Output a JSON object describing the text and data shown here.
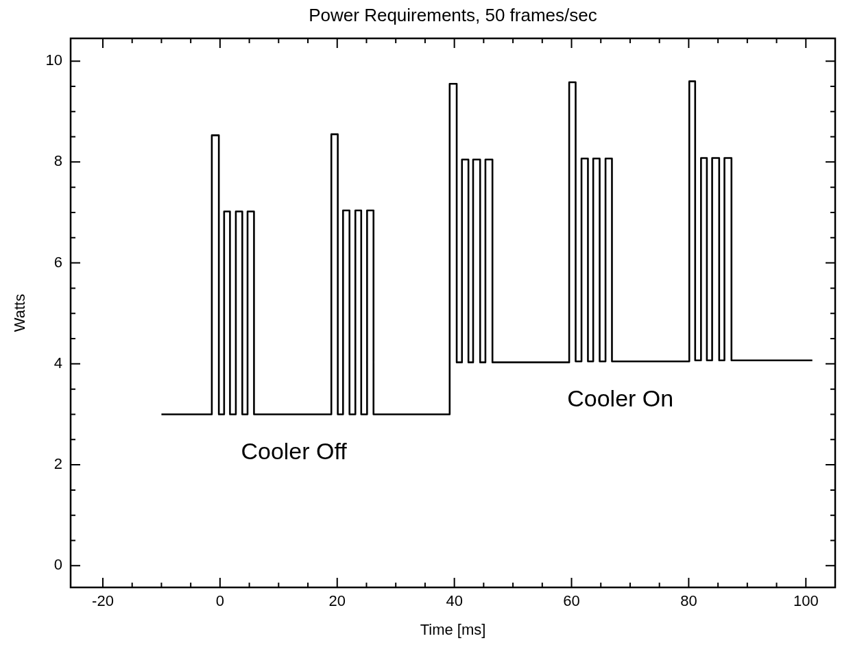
{
  "chart_data": {
    "type": "line",
    "title": "Power Requirements, 50 frames/sec",
    "xlabel": "Time [ms]",
    "ylabel": "Watts",
    "xlim": [
      -25.5,
      105
    ],
    "ylim": [
      -0.43,
      10.45
    ],
    "xticks": [
      -20,
      {
        "value": -15,
        "label": null
      },
      {
        "value": -10,
        "label": null
      },
      {
        "value": -5,
        "label": null
      },
      0,
      {
        "value": 5,
        "label": null
      },
      {
        "value": 10,
        "label": null
      },
      {
        "value": 15,
        "label": null
      },
      20,
      {
        "value": 25,
        "label": null
      },
      {
        "value": 30,
        "label": null
      },
      {
        "value": 35,
        "label": null
      },
      40,
      {
        "value": 45,
        "label": null
      },
      {
        "value": 50,
        "label": null
      },
      {
        "value": 55,
        "label": null
      },
      60,
      {
        "value": 65,
        "label": null
      },
      {
        "value": 70,
        "label": null
      },
      {
        "value": 75,
        "label": null
      },
      80,
      {
        "value": 85,
        "label": null
      },
      {
        "value": 90,
        "label": null
      },
      {
        "value": 95,
        "label": null
      },
      100
    ],
    "yticks": [
      0,
      {
        "value": 0.5,
        "label": null
      },
      {
        "value": 1,
        "label": null
      },
      {
        "value": 1.5,
        "label": null
      },
      2,
      {
        "value": 2.5,
        "label": null
      },
      {
        "value": 3,
        "label": null
      },
      {
        "value": 3.5,
        "label": null
      },
      4,
      {
        "value": 4.5,
        "label": null
      },
      {
        "value": 5,
        "label": null
      },
      {
        "value": 5.5,
        "label": null
      },
      6,
      {
        "value": 6.5,
        "label": null
      },
      {
        "value": 7,
        "label": null
      },
      {
        "value": 7.5,
        "label": null
      },
      8,
      {
        "value": 8.5,
        "label": null
      },
      {
        "value": 9,
        "label": null
      },
      {
        "value": 9.5,
        "label": null
      },
      10
    ],
    "grid": false,
    "legend": false,
    "marker": "none",
    "line_style": "solid",
    "series": [
      {
        "color": "#000000",
        "x": [
          -10,
          -1.4,
          -1.4,
          -0.2,
          -0.2,
          0.7,
          0.7,
          1.7,
          1.7,
          2.7,
          2.7,
          3.8,
          3.8,
          4.7,
          4.7,
          5.8,
          5.8,
          19.0,
          19.0,
          20.1,
          20.1,
          21.0,
          21.0,
          22.1,
          22.1,
          23.1,
          23.1,
          24.1,
          24.1,
          25.1,
          25.1,
          26.2,
          26.2,
          39.2,
          39.2,
          40.4,
          40.4,
          41.3,
          41.3,
          42.4,
          42.4,
          43.2,
          43.2,
          44.4,
          44.4,
          45.3,
          45.3,
          46.5,
          46.5,
          59.6,
          59.6,
          60.7,
          60.7,
          61.7,
          61.7,
          62.8,
          62.8,
          63.7,
          63.7,
          64.8,
          64.8,
          65.8,
          65.8,
          66.9,
          66.9,
          80.1,
          80.1,
          81.1,
          81.1,
          82.1,
          82.1,
          83.1,
          83.1,
          84.0,
          84.0,
          85.2,
          85.2,
          86.1,
          86.1,
          87.3,
          87.3,
          101.1
        ],
        "values": [
          3,
          3,
          8.53,
          8.53,
          3,
          3,
          7.02,
          7.02,
          3,
          3,
          7.02,
          7.02,
          3,
          3,
          7.02,
          7.02,
          3,
          3,
          8.55,
          8.55,
          3,
          3,
          7.04,
          7.04,
          3,
          3,
          7.04,
          7.04,
          3,
          3,
          7.04,
          7.04,
          3,
          3,
          9.55,
          9.55,
          4.03,
          4.03,
          8.05,
          8.05,
          4.03,
          4.03,
          8.05,
          8.05,
          4.03,
          4.03,
          8.05,
          8.05,
          4.03,
          4.03,
          9.58,
          9.58,
          4.05,
          4.05,
          8.07,
          8.07,
          4.05,
          4.05,
          8.07,
          8.07,
          4.05,
          4.05,
          8.07,
          8.07,
          4.05,
          4.05,
          9.6,
          9.6,
          4.07,
          4.07,
          8.08,
          8.08,
          4.07,
          4.07,
          8.08,
          8.08,
          4.07,
          4.07,
          8.08,
          8.08,
          4.07,
          4.07
        ]
      }
    ],
    "annotations": [
      "Cooler Off",
      "Cooler On"
    ]
  }
}
